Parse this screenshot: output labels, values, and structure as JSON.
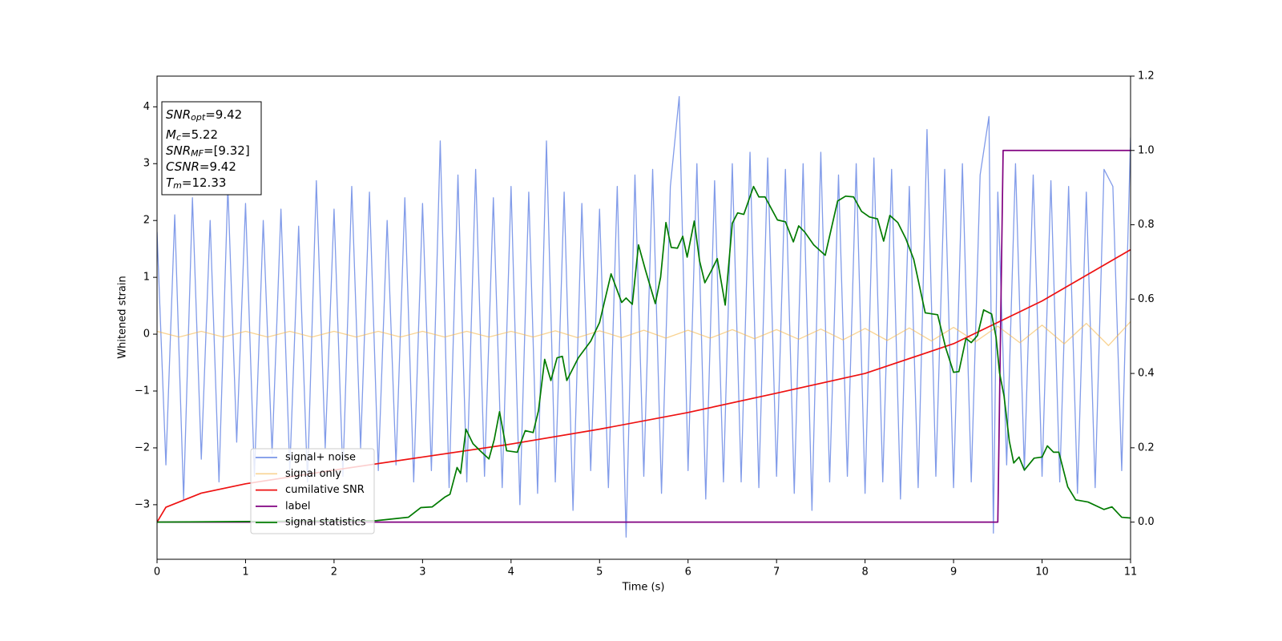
{
  "chart_data": {
    "type": "line",
    "xlabel": "Time (s)",
    "ylabel": "Whitened strain",
    "xlim": [
      0,
      11
    ],
    "ylim": [
      -3.96,
      4.54
    ],
    "y2lim": [
      -0.1,
      1.2
    ],
    "xticks": [
      0,
      1,
      2,
      3,
      4,
      5,
      6,
      7,
      8,
      9,
      10,
      11
    ],
    "yticks": [
      {
        "value": -3,
        "label": "−3"
      },
      {
        "value": -2,
        "label": "−2"
      },
      {
        "value": -1,
        "label": "−1"
      },
      0,
      1,
      2,
      3,
      4
    ],
    "y2ticks": [
      {
        "value": 0,
        "label": "0.0"
      },
      0.2,
      0.4,
      0.6,
      0.8,
      {
        "value": 1,
        "label": "1.0"
      },
      1.2
    ],
    "annotation": [
      {
        "main": "SNR",
        "sub": "opt",
        "rest": "=9.42"
      },
      {
        "main": "M",
        "sub": "c",
        "rest": "=5.22"
      },
      {
        "main": "SNR",
        "sub": "MF",
        "rest": "=[9.32]"
      },
      {
        "main": "CSNR",
        "rest": "=9.42"
      },
      {
        "main": "T",
        "sub": "m",
        "rest": "=12.33"
      }
    ],
    "series": [
      {
        "name": "signal+ noise",
        "color": "#7a96e8",
        "x": [
          0,
          0.1,
          0.2,
          0.3,
          0.4,
          0.5,
          0.6,
          0.7,
          0.8,
          0.9,
          1.0,
          1.1,
          1.2,
          1.3,
          1.4,
          1.5,
          1.6,
          1.7,
          1.8,
          1.9,
          2.0,
          2.1,
          2.2,
          2.3,
          2.4,
          2.5,
          2.6,
          2.7,
          2.8,
          2.9,
          3.0,
          3.1,
          3.2,
          3.3,
          3.4,
          3.5,
          3.6,
          3.7,
          3.8,
          3.9,
          4.0,
          4.1,
          4.2,
          4.3,
          4.4,
          4.5,
          4.6,
          4.7,
          4.8,
          4.9,
          5.0,
          5.1,
          5.2,
          5.3,
          5.4,
          5.5,
          5.6,
          5.7,
          5.8,
          5.9,
          6.0,
          6.1,
          6.2,
          6.3,
          6.4,
          6.5,
          6.6,
          6.7,
          6.8,
          6.9,
          7.0,
          7.1,
          7.2,
          7.3,
          7.4,
          7.5,
          7.6,
          7.7,
          7.8,
          7.9,
          8.0,
          8.1,
          8.2,
          8.3,
          8.4,
          8.5,
          8.6,
          8.7,
          8.8,
          8.9,
          9.0,
          9.1,
          9.2,
          9.3,
          9.4,
          9.45,
          9.5,
          9.6,
          9.7,
          9.8,
          9.9,
          10.0,
          10.1,
          10.2,
          10.3,
          10.4,
          10.5,
          10.6,
          10.7,
          10.8,
          10.9,
          11.0
        ],
        "values": [
          1.8,
          -2.3,
          2.1,
          -2.9,
          2.4,
          -2.2,
          2.0,
          -2.6,
          2.6,
          -1.9,
          2.3,
          -2.5,
          2.0,
          -2.1,
          2.2,
          -2.4,
          1.9,
          -2.6,
          2.7,
          -2.0,
          2.2,
          -2.5,
          2.6,
          -2.0,
          2.5,
          -2.4,
          2.0,
          -2.3,
          2.4,
          -2.6,
          2.3,
          -2.4,
          3.4,
          -2.7,
          2.8,
          -2.6,
          2.9,
          -2.5,
          2.4,
          -2.7,
          2.6,
          -3.0,
          2.5,
          -2.8,
          3.4,
          -2.6,
          2.5,
          -3.1,
          2.3,
          -2.4,
          2.2,
          -2.7,
          2.6,
          -3.57,
          2.8,
          -2.5,
          2.9,
          -2.8,
          2.6,
          4.18,
          -2.4,
          3.0,
          -2.9,
          2.7,
          -2.6,
          3.0,
          -2.6,
          3.2,
          -2.7,
          3.1,
          -2.5,
          2.9,
          -2.8,
          3.0,
          -3.1,
          3.2,
          -2.6,
          2.8,
          -2.5,
          3.0,
          -2.8,
          3.1,
          -2.6,
          2.9,
          -2.9,
          2.6,
          -2.7,
          3.6,
          -2.5,
          2.9,
          -2.7,
          3.0,
          -2.6,
          2.8,
          3.83,
          -3.5,
          2.5,
          -2.3,
          3.0,
          -2.4,
          2.8,
          -2.5,
          2.7,
          -2.6,
          2.6,
          -2.8,
          2.5,
          -2.7,
          2.9,
          2.6,
          -2.4,
          3.46
        ]
      },
      {
        "name": "signal only",
        "color": "#f5b54a",
        "x": [
          0,
          0.25,
          0.5,
          0.75,
          1,
          1.25,
          1.5,
          1.75,
          2,
          2.25,
          2.5,
          2.75,
          3,
          3.25,
          3.5,
          3.75,
          4,
          4.25,
          4.5,
          4.75,
          5,
          5.25,
          5.5,
          5.75,
          6,
          6.25,
          6.5,
          6.75,
          7,
          7.25,
          7.5,
          7.75,
          8,
          8.25,
          8.5,
          8.75,
          9,
          9.25,
          9.5,
          9.75,
          10,
          10.25,
          10.5,
          10.75,
          11
        ],
        "values": [
          0.05,
          -0.05,
          0.05,
          -0.05,
          0.05,
          -0.05,
          0.05,
          -0.05,
          0.05,
          -0.05,
          0.05,
          -0.05,
          0.05,
          -0.05,
          0.05,
          -0.05,
          0.05,
          -0.05,
          0.06,
          -0.06,
          0.06,
          -0.06,
          0.07,
          -0.07,
          0.07,
          -0.07,
          0.08,
          -0.08,
          0.08,
          -0.09,
          0.09,
          -0.1,
          0.1,
          -0.11,
          0.11,
          -0.12,
          0.12,
          -0.13,
          0.14,
          -0.15,
          0.16,
          -0.17,
          0.19,
          -0.2,
          0.22
        ]
      },
      {
        "name": "cumilative SNR",
        "color": "#ee1111",
        "axis": "y2",
        "x": [
          0,
          0.1,
          0.5,
          1,
          2,
          3,
          4,
          5,
          6,
          7,
          8,
          9,
          10,
          11
        ],
        "values": [
          0,
          0.04,
          0.078,
          0.103,
          0.14,
          0.175,
          0.21,
          0.25,
          0.295,
          0.347,
          0.4,
          0.48,
          0.595,
          0.733
        ]
      },
      {
        "name": "label",
        "color": "#800080",
        "axis": "y2",
        "x": [
          0,
          9.5,
          9.56,
          11
        ],
        "values": [
          0,
          0,
          1,
          1
        ]
      },
      {
        "name": "signal statistics",
        "color": "#007a00",
        "axis": "y2",
        "x": [
          0,
          2.48,
          2.84,
          2.98,
          3.11,
          3.25,
          3.31,
          3.39,
          3.43,
          3.49,
          3.57,
          3.66,
          3.75,
          3.81,
          3.87,
          3.95,
          4.07,
          4.16,
          4.25,
          4.31,
          4.38,
          4.45,
          4.52,
          4.58,
          4.63,
          4.76,
          4.9,
          5.0,
          5.13,
          5.25,
          5.3,
          5.37,
          5.44,
          5.52,
          5.63,
          5.69,
          5.75,
          5.81,
          5.88,
          5.94,
          5.99,
          6.07,
          6.13,
          6.19,
          6.26,
          6.33,
          6.42,
          6.5,
          6.56,
          6.63,
          6.74,
          6.8,
          6.87,
          7.01,
          7.1,
          7.19,
          7.25,
          7.32,
          7.42,
          7.55,
          7.69,
          7.78,
          7.87,
          7.96,
          8.05,
          8.14,
          8.21,
          8.28,
          8.37,
          8.46,
          8.55,
          8.68,
          8.82,
          8.91,
          9.0,
          9.06,
          9.14,
          9.2,
          9.27,
          9.34,
          9.43,
          9.48,
          9.52,
          9.57,
          9.63,
          9.68,
          9.74,
          9.8,
          9.91,
          10.0,
          10.06,
          10.13,
          10.19,
          10.29,
          10.38,
          10.52,
          10.7,
          10.79,
          10.9,
          11
        ],
        "values": [
          0,
          0.004,
          0.013,
          0.039,
          0.041,
          0.067,
          0.075,
          0.147,
          0.131,
          0.25,
          0.211,
          0.19,
          0.17,
          0.222,
          0.297,
          0.192,
          0.188,
          0.246,
          0.241,
          0.3,
          0.438,
          0.381,
          0.442,
          0.446,
          0.381,
          0.442,
          0.487,
          0.537,
          0.668,
          0.591,
          0.603,
          0.586,
          0.746,
          0.677,
          0.588,
          0.659,
          0.806,
          0.739,
          0.737,
          0.769,
          0.713,
          0.81,
          0.703,
          0.644,
          0.675,
          0.709,
          0.584,
          0.804,
          0.832,
          0.828,
          0.903,
          0.875,
          0.875,
          0.813,
          0.808,
          0.754,
          0.797,
          0.78,
          0.746,
          0.718,
          0.864,
          0.877,
          0.875,
          0.836,
          0.821,
          0.816,
          0.756,
          0.825,
          0.806,
          0.763,
          0.707,
          0.563,
          0.558,
          0.47,
          0.403,
          0.405,
          0.494,
          0.483,
          0.502,
          0.571,
          0.56,
          0.498,
          0.401,
          0.34,
          0.218,
          0.159,
          0.175,
          0.14,
          0.172,
          0.175,
          0.205,
          0.188,
          0.188,
          0.095,
          0.06,
          0.054,
          0.034,
          0.041,
          0.013,
          0.011
        ]
      }
    ]
  }
}
